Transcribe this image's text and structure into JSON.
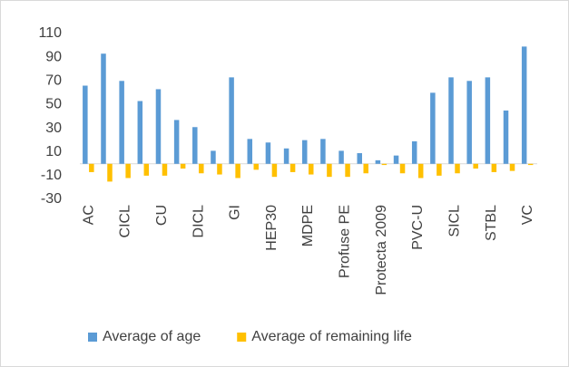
{
  "chart_data": {
    "type": "bar",
    "categories": [
      "AC",
      null,
      "CICL",
      null,
      "CU",
      null,
      "DICL",
      null,
      "GI",
      null,
      "HEP30",
      null,
      "MDPE",
      null,
      "Profuse PE",
      null,
      "Protecta 2009",
      null,
      "PVC-U",
      null,
      "SICL",
      null,
      "STBL",
      null,
      "VC"
    ],
    "series": [
      {
        "name": "Average of age",
        "color": "#5b9bd5",
        "values": [
          66,
          93,
          70,
          53,
          63,
          37,
          31,
          11,
          73,
          21,
          18,
          13,
          20,
          21,
          11,
          9,
          3,
          7,
          19,
          60,
          73,
          70,
          73,
          45,
          99
        ]
      },
      {
        "name": "Average of remaining life",
        "color": "#ffc000",
        "values": [
          -7,
          -15,
          -12,
          -10,
          -10,
          -4,
          -8,
          -9,
          -12,
          -5,
          -11,
          -7,
          -9,
          -11,
          -11,
          -8,
          -1,
          -8,
          -12,
          -10,
          -8,
          -4,
          -7,
          -6,
          -1
        ]
      }
    ],
    "ylim": [
      -30,
      110
    ],
    "yticks": [
      -30,
      -10,
      10,
      30,
      50,
      70,
      90,
      110
    ],
    "grid": false,
    "legend": "bottom"
  }
}
